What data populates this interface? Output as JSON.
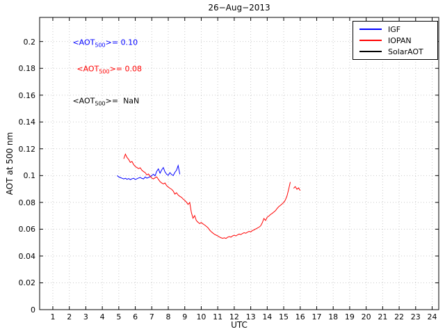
{
  "chart_data": {
    "type": "line",
    "title": "26−Aug−2013",
    "xlabel": "UTC",
    "ylabel": "AOT at 500 nm",
    "xlim": [
      0.2,
      24.4
    ],
    "ylim": [
      0,
      0.218
    ],
    "grid": true,
    "background": "#ffffff",
    "axis_color": "#000000",
    "grid_color": "#c9c9c9",
    "xticks": {
      "values": [
        1,
        2,
        3,
        4,
        5,
        6,
        7,
        8,
        9,
        10,
        11,
        12,
        13,
        14,
        15,
        16,
        17,
        18,
        19,
        20,
        21,
        22,
        23,
        24
      ],
      "labels": [
        "1",
        "2",
        "3",
        "4",
        "5",
        "6",
        "7",
        "8",
        "9",
        "10",
        "11",
        "12",
        "13",
        "14",
        "15",
        "16",
        "17",
        "18",
        "19",
        "20",
        "21",
        "22",
        "23",
        "24"
      ]
    },
    "yticks": {
      "values": [
        0,
        0.02,
        0.04,
        0.06,
        0.08,
        0.1,
        0.12,
        0.14,
        0.16,
        0.18,
        0.2
      ],
      "labels": [
        "0",
        "0.02",
        "0.04",
        "0.06",
        "0.08",
        "0.1",
        "0.12",
        "0.14",
        "0.16",
        "0.18",
        "0.2"
      ]
    },
    "legend": {
      "position": "top-right",
      "entries": [
        {
          "label": "IGF",
          "color": "#0000ff"
        },
        {
          "label": "IOPAN",
          "color": "#ff0000"
        },
        {
          "label": "SolarAOT",
          "color": "#000000"
        }
      ]
    },
    "annotations": [
      {
        "pre": "<AOT",
        "sub": "500",
        "post": ">= 0.10",
        "color": "#0000ff",
        "x": 2.2,
        "y": 0.199
      },
      {
        "pre": "<AOT",
        "sub": "500",
        "post": ">= 0.08",
        "color": "#ff0000",
        "x": 2.45,
        "y": 0.179
      },
      {
        "pre": "<AOT",
        "sub": "500",
        "post": ">=  NaN",
        "color": "#000000",
        "x": 2.2,
        "y": 0.155
      }
    ],
    "series": [
      {
        "name": "IGF",
        "color": "#0000ff",
        "mean_aot_500": 0.1,
        "x0": 4.9,
        "dx": 0.1,
        "y": [
          0.1,
          0.099,
          0.0985,
          0.098,
          0.0975,
          0.098,
          0.0972,
          0.0978,
          0.097,
          0.0976,
          0.098,
          0.0971,
          0.0976,
          0.0982,
          0.0986,
          0.0979,
          0.0975,
          0.099,
          0.0981,
          0.0986,
          0.0992,
          0.1,
          0.101,
          0.0998,
          0.1032,
          0.105,
          0.1018,
          0.1042,
          0.106,
          0.1028,
          0.101,
          0.1002,
          0.1022,
          0.1008,
          0.1,
          0.1024,
          0.104,
          0.1075,
          0.101
        ]
      },
      {
        "name": "IOPAN",
        "color": "#ff0000",
        "mean_aot_500": 0.08,
        "x0": 5.3,
        "dx": 0.1,
        "y": [
          0.1125,
          0.116,
          0.1135,
          0.112,
          0.1098,
          0.1105,
          0.1082,
          0.1068,
          0.106,
          0.1052,
          0.1058,
          0.104,
          0.103,
          0.1022,
          0.1005,
          0.1012,
          0.0995,
          0.0982,
          0.0975,
          0.0984,
          0.099,
          0.0972,
          0.0955,
          0.0945,
          0.0938,
          0.0945,
          0.0925,
          0.0915,
          0.0905,
          0.0898,
          0.0885,
          0.0862,
          0.0872,
          0.0855,
          0.0845,
          0.0838,
          0.0825,
          0.0815,
          0.0802,
          0.0785,
          0.08,
          0.0725,
          0.0682,
          0.0702,
          0.0665,
          0.0652,
          0.0642,
          0.065,
          0.064,
          0.0632,
          0.0622,
          0.0612,
          0.0595,
          0.0582,
          0.0572,
          0.0562,
          0.0556,
          0.055,
          0.0542,
          0.0536,
          0.0532,
          0.0536,
          0.0531,
          0.054,
          0.0545,
          0.0541,
          0.055,
          0.0555,
          0.055,
          0.0558,
          0.0564,
          0.056,
          0.0568,
          0.0574,
          0.057,
          0.0578,
          0.0584,
          0.058,
          0.059,
          0.0595,
          0.0602,
          0.0608,
          0.0615,
          0.0625,
          0.0648,
          0.068,
          0.0665,
          0.069,
          0.0698,
          0.071,
          0.0718,
          0.0728,
          0.0738,
          0.0755,
          0.0768,
          0.0778,
          0.0788,
          0.08,
          0.0818,
          0.0848,
          0.0898,
          0.0952,
          null,
          0.0905,
          0.0918,
          0.0898,
          0.0908,
          0.0888
        ]
      },
      {
        "name": "SolarAOT",
        "color": "#000000",
        "mean_aot_500": null,
        "x0": null,
        "dx": null,
        "y": []
      }
    ]
  }
}
